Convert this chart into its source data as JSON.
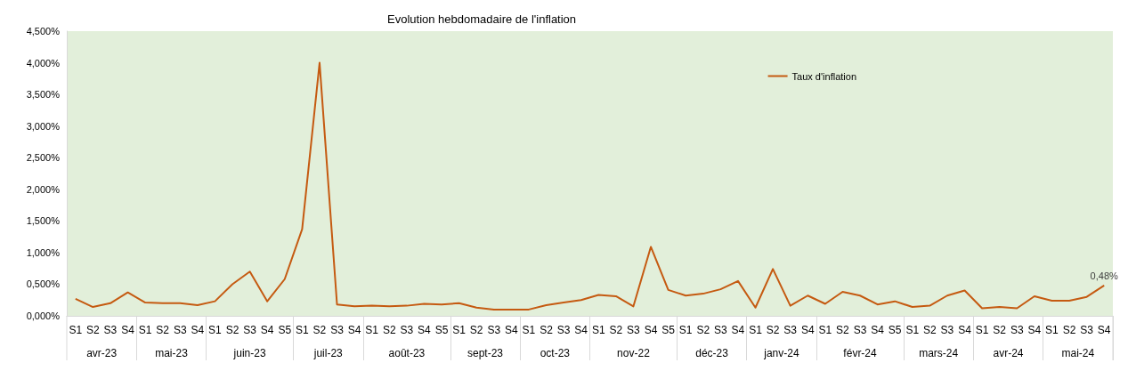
{
  "chart_data": {
    "type": "line",
    "title": "Evolution hebdomadaire de l'inflation",
    "categories": [
      "S1",
      "S2",
      "S3",
      "S4",
      "S1",
      "S2",
      "S3",
      "S4",
      "S1",
      "S2",
      "S3",
      "S4",
      "S5",
      "S1",
      "S2",
      "S3",
      "S4",
      "S1",
      "S2",
      "S3",
      "S4",
      "S5",
      "S1",
      "S2",
      "S3",
      "S4",
      "S1",
      "S2",
      "S3",
      "S4",
      "S1",
      "S2",
      "S3",
      "S4",
      "S5",
      "S1",
      "S2",
      "S3",
      "S4",
      "S1",
      "S2",
      "S3",
      "S4",
      "S1",
      "S2",
      "S3",
      "S4",
      "S5",
      "S1",
      "S2",
      "S3",
      "S4",
      "S1",
      "S2",
      "S3",
      "S4",
      "S1",
      "S2",
      "S3",
      "S4"
    ],
    "series": [
      {
        "name": "Taux d'inflation",
        "color": "#c55a11",
        "values": [
          0.27,
          0.14,
          0.2,
          0.37,
          0.21,
          0.2,
          0.2,
          0.17,
          0.23,
          0.5,
          0.7,
          0.23,
          0.58,
          1.37,
          4.0,
          0.18,
          0.15,
          0.16,
          0.15,
          0.16,
          0.19,
          0.18,
          0.2,
          0.13,
          0.1,
          0.1,
          0.1,
          0.17,
          0.21,
          0.25,
          0.33,
          0.31,
          0.15,
          1.09,
          0.41,
          0.32,
          0.35,
          0.42,
          0.55,
          0.13,
          0.74,
          0.16,
          0.32,
          0.19,
          0.38,
          0.32,
          0.18,
          0.23,
          0.14,
          0.16,
          0.32,
          0.4,
          0.12,
          0.14,
          0.12,
          0.31,
          0.24,
          0.24,
          0.3,
          0.48
        ],
        "value_labels": [
          null,
          null,
          null,
          null,
          null,
          null,
          null,
          null,
          null,
          null,
          null,
          null,
          null,
          null,
          null,
          null,
          null,
          null,
          null,
          null,
          null,
          null,
          null,
          null,
          null,
          null,
          null,
          null,
          null,
          null,
          null,
          null,
          null,
          null,
          null,
          null,
          null,
          null,
          null,
          null,
          null,
          null,
          null,
          null,
          null,
          null,
          null,
          null,
          null,
          null,
          null,
          null,
          null,
          null,
          null,
          null,
          null,
          null,
          null,
          "0,48%"
        ]
      }
    ],
    "annotations": [
      "avr-23",
      "mai-23",
      "juin-23",
      "juil-23",
      "août-23",
      "sept-23",
      "oct-23",
      "nov-22",
      "déc-23",
      "janv-24",
      "févr-24",
      "mars-24",
      "avr-24",
      "mai-24"
    ],
    "ylim": [
      0,
      4.5
    ],
    "yticks": [
      {
        "value": 0,
        "label": "0,000%"
      },
      {
        "value": 0.5,
        "label": "0,500%"
      },
      {
        "value": 1,
        "label": "1,000%"
      },
      {
        "value": 1.5,
        "label": "1,500%"
      },
      {
        "value": 2,
        "label": "2,000%"
      },
      {
        "value": 2.5,
        "label": "2,500%"
      },
      {
        "value": 3,
        "label": "3,000%"
      },
      {
        "value": 3.5,
        "label": "3,500%"
      },
      {
        "value": 4,
        "label": "4,000%"
      },
      {
        "value": 4.5,
        "label": "4,500%"
      }
    ],
    "legend": "top right"
  }
}
